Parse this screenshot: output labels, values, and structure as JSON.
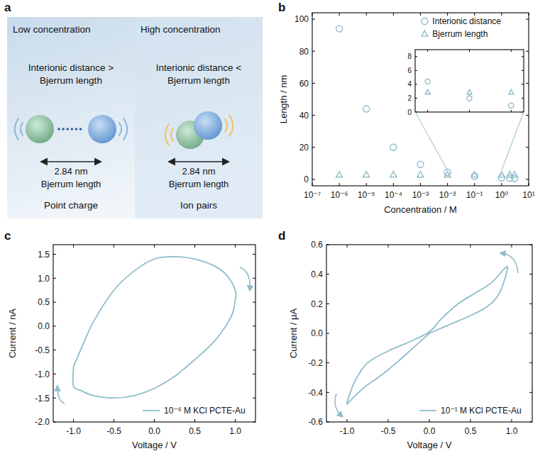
{
  "panel_a": {
    "label": "a",
    "panels": [
      {
        "title": "Low concentration",
        "condition": [
          "Interionic distance >",
          "Bjerrum length"
        ],
        "distance": "2.84 nm",
        "distance_name": "Bjerrum length",
        "state": "Point charge"
      },
      {
        "title": "High concentration",
        "condition": [
          "Interionic distance <",
          "Bjerrum length"
        ],
        "distance": "2.84 nm",
        "distance_name": "Bjerrum length",
        "state": "Ion pairs"
      }
    ]
  },
  "chart_data": [
    {
      "panel": "b",
      "type": "scatter",
      "log": "x",
      "x_label": "Concentration / M",
      "y_label": "Length / nm",
      "x": [
        1e-06,
        1e-05,
        0.0001,
        0.001,
        0.01,
        0.1,
        1,
        2,
        3
      ],
      "xlim": [
        1e-07,
        10
      ],
      "xticks": [
        {
          "value": 1e-07,
          "label": "10⁻⁷"
        },
        {
          "value": 1e-06,
          "label": "10⁻⁶"
        },
        {
          "value": 1e-05,
          "label": "10⁻⁵"
        },
        {
          "value": 0.0001,
          "label": "10⁻⁴"
        },
        {
          "value": 0.001,
          "label": "10⁻³"
        },
        {
          "value": 0.01,
          "label": "10⁻²"
        },
        {
          "value": 0.1,
          "label": "10⁻¹"
        },
        {
          "value": 1,
          "label": "10⁰"
        },
        {
          "value": 10,
          "label": "10¹"
        }
      ],
      "ylim": [
        -4,
        104
      ],
      "yticks": [
        0,
        20,
        40,
        60,
        80,
        100
      ],
      "legend": "upper right",
      "series": [
        {
          "name": "Interionic distance",
          "color": "#8fbccb",
          "marker": "circle",
          "values": [
            94,
            44,
            20,
            9.4,
            4.4,
            2.0,
            0.94,
            0.75,
            0.65
          ]
        },
        {
          "name": "Bjerrum length",
          "color": "#8fbccb",
          "marker": "triangle",
          "values": [
            2.84,
            2.84,
            2.84,
            2.84,
            2.84,
            2.84,
            2.84,
            2.84,
            2.84
          ]
        }
      ]
    },
    {
      "type": "scatter",
      "log": "x",
      "x": [
        0.01,
        0.1,
        1
      ],
      "xlim": [
        0.005,
        2
      ],
      "xticks": [
        0.01,
        0.1,
        1
      ],
      "ylim": [
        0,
        9
      ],
      "yticks": [
        0,
        2,
        4,
        6,
        8
      ],
      "tick_labels": "y",
      "series": [
        {
          "color": "#8fbccb",
          "marker": "circle",
          "values": [
            4.4,
            2.0,
            0.94
          ]
        },
        {
          "color": "#8fbccb",
          "marker": "triangle",
          "values": [
            2.84,
            2.84,
            2.84
          ]
        }
      ]
    },
    {
      "panel": "c",
      "type": "line",
      "x_label": "Voltage / V",
      "y_label": "Current / nA",
      "x": [
        -1.0,
        -0.9,
        -0.75,
        -0.5,
        -0.25,
        0.0,
        0.25,
        0.5,
        0.75,
        0.9,
        1.0,
        1.0,
        0.95,
        0.75,
        0.5,
        0.25,
        0.0,
        -0.25,
        -0.5,
        -0.75,
        -0.9,
        -1.0,
        -1.0
      ],
      "xlim": [
        -1.25,
        1.25
      ],
      "xticks": [
        {
          "value": -1,
          "label": "-1.0"
        },
        -0.5,
        {
          "value": 0,
          "label": "0.0"
        },
        0.5,
        {
          "value": 1,
          "label": "1.0"
        }
      ],
      "ylim": [
        -2.0,
        1.7
      ],
      "yticks": [
        {
          "value": -2,
          "label": "-2.0"
        },
        -1.5,
        {
          "value": -1,
          "label": "-1.0"
        },
        -0.5,
        {
          "value": 0,
          "label": "0.0"
        },
        0.5,
        {
          "value": 1,
          "label": "1.0"
        },
        1.5
      ],
      "legend": "lower right",
      "series": [
        {
          "name": "10⁻⁶ M KCl PCTE-Au",
          "color": "#8fbccb",
          "values": [
            -0.85,
            -0.45,
            0.1,
            0.75,
            1.15,
            1.4,
            1.45,
            1.4,
            1.25,
            1.05,
            0.75,
            0.55,
            0.2,
            -0.3,
            -0.7,
            -1.05,
            -1.3,
            -1.45,
            -1.5,
            -1.45,
            -1.35,
            -1.25,
            -0.85
          ]
        }
      ]
    },
    {
      "panel": "d",
      "type": "line",
      "x_label": "Voltage / V",
      "y_label": "Current / μA",
      "x": [
        0,
        0.25,
        0.5,
        0.7,
        0.85,
        0.95,
        0.9,
        0.75,
        0.55,
        0.35,
        0.15,
        0,
        -0.25,
        -0.5,
        -0.75,
        -0.9,
        -1.0,
        -0.95,
        -0.8,
        -0.6,
        -0.4,
        -0.2,
        0
      ],
      "xlim": [
        -1.25,
        1.25
      ],
      "xticks": [
        {
          "value": -1,
          "label": "-1.0"
        },
        -0.5,
        {
          "value": 0,
          "label": "0.0"
        },
        0.5,
        {
          "value": 1,
          "label": "1.0"
        }
      ],
      "ylim": [
        -0.6,
        0.6
      ],
      "yticks": [
        -0.6,
        -0.4,
        -0.2,
        {
          "value": 0,
          "label": "0.0"
        },
        0.2,
        0.4,
        0.6
      ],
      "legend": "lower right",
      "series": [
        {
          "name": "10⁻¹ M KCl PCTE-Au",
          "color": "#8fbccb",
          "values": [
            0,
            0.06,
            0.12,
            0.18,
            0.27,
            0.44,
            0.43,
            0.34,
            0.27,
            0.2,
            0.1,
            0.01,
            -0.06,
            -0.12,
            -0.2,
            -0.32,
            -0.47,
            -0.45,
            -0.37,
            -0.29,
            -0.2,
            -0.1,
            0
          ]
        }
      ]
    }
  ]
}
